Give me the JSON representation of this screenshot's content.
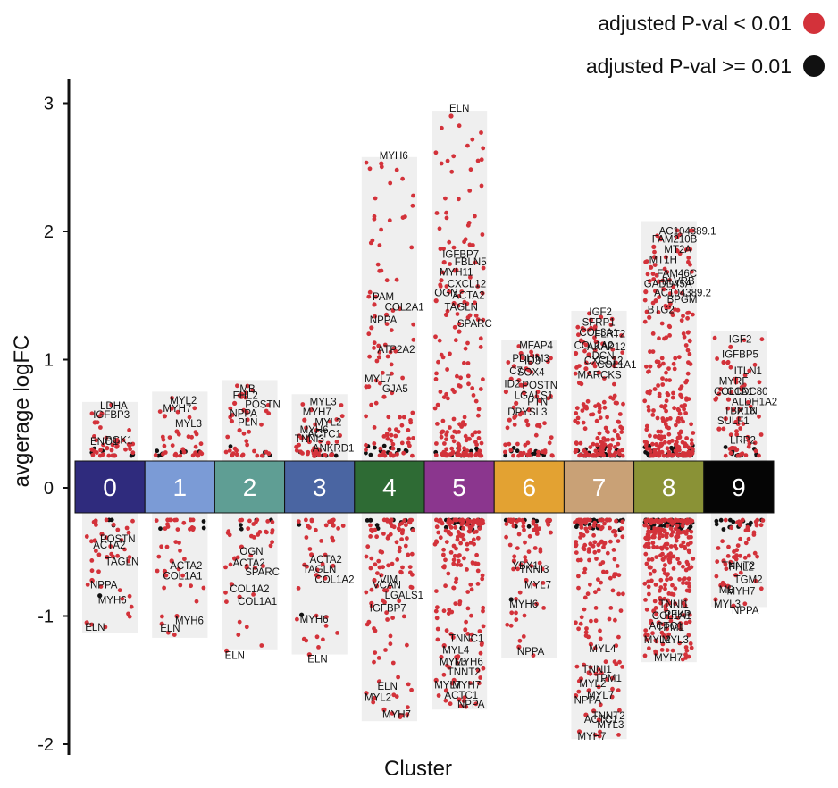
{
  "chart_data": {
    "type": "scatter",
    "xlabel": "Cluster",
    "ylabel": "avgerage logFC",
    "ylim": [
      -2,
      3
    ],
    "yticks": [
      {
        "v": -2,
        "t": "-2"
      },
      {
        "v": -1,
        "t": "-1"
      },
      {
        "v": 0,
        "t": "0"
      },
      {
        "v": 1,
        "t": "1"
      },
      {
        "v": 2,
        "t": "2"
      },
      {
        "v": 3,
        "t": "3"
      }
    ],
    "legend": [
      {
        "label": "adjusted P-val < 0.01",
        "color": "#d3323a"
      },
      {
        "label": "adjusted  P-val >= 0.01",
        "color": "#111111"
      }
    ],
    "legend_position": "top-right",
    "grid": false,
    "clusters": [
      {
        "label": "0",
        "color": "#2f2b7d",
        "text_color": "#ffffff",
        "max": 0.67,
        "min": -1.13
      },
      {
        "label": "1",
        "color": "#7b9bd6",
        "text_color": "#ffffff",
        "max": 0.75,
        "min": -1.17
      },
      {
        "label": "2",
        "color": "#5f9e94",
        "text_color": "#ffffff",
        "max": 0.84,
        "min": -1.26
      },
      {
        "label": "3",
        "color": "#4a65a2",
        "text_color": "#ffffff",
        "max": 0.73,
        "min": -1.3
      },
      {
        "label": "4",
        "color": "#2e6b34",
        "text_color": "#ffffff",
        "max": 2.58,
        "min": -1.82
      },
      {
        "label": "5",
        "color": "#8b368e",
        "text_color": "#ffffff",
        "max": 2.94,
        "min": -1.73
      },
      {
        "label": "6",
        "color": "#e3a232",
        "text_color": "#ffffff",
        "max": 1.15,
        "min": -1.33
      },
      {
        "label": "7",
        "color": "#c9a176",
        "text_color": "#ffffff",
        "max": 1.38,
        "min": -1.96
      },
      {
        "label": "8",
        "color": "#8a9236",
        "text_color": "#ffffff",
        "max": 2.08,
        "min": -1.36
      },
      {
        "label": "9",
        "color": "#050505",
        "text_color": "#ffffff",
        "max": 1.22,
        "min": -0.93
      }
    ],
    "labeled_genes": [
      {
        "cluster": 0,
        "gene": "LDHA",
        "y": 0.6,
        "sig": true
      },
      {
        "cluster": 0,
        "gene": "IGFBP3",
        "y": 0.53,
        "sig": true
      },
      {
        "cluster": 0,
        "gene": "PGK1",
        "y": 0.33,
        "sig": true
      },
      {
        "cluster": 0,
        "gene": "ENO1",
        "y": 0.32,
        "sig": true
      },
      {
        "cluster": 0,
        "gene": "POSTN",
        "y": -0.34,
        "sig": true
      },
      {
        "cluster": 0,
        "gene": "ACTA2",
        "y": -0.39,
        "sig": true
      },
      {
        "cluster": 0,
        "gene": "TAGLN",
        "y": -0.52,
        "sig": true
      },
      {
        "cluster": 0,
        "gene": "NPPA",
        "y": -0.7,
        "sig": true
      },
      {
        "cluster": 0,
        "gene": "MYH6",
        "y": -0.82,
        "sig": false
      },
      {
        "cluster": 0,
        "gene": "ELN",
        "y": -1.03,
        "sig": true
      },
      {
        "cluster": 1,
        "gene": "MYL2",
        "y": 0.64,
        "sig": true
      },
      {
        "cluster": 1,
        "gene": "MYH7",
        "y": 0.58,
        "sig": true
      },
      {
        "cluster": 1,
        "gene": "MYL3",
        "y": 0.46,
        "sig": true
      },
      {
        "cluster": 1,
        "gene": "ACTA2",
        "y": -0.55,
        "sig": true
      },
      {
        "cluster": 1,
        "gene": "COL1A1",
        "y": -0.63,
        "sig": true
      },
      {
        "cluster": 1,
        "gene": "MYH6",
        "y": -0.98,
        "sig": true
      },
      {
        "cluster": 1,
        "gene": "ELN",
        "y": -1.04,
        "sig": true
      },
      {
        "cluster": 2,
        "gene": "MB",
        "y": 0.73,
        "sig": true
      },
      {
        "cluster": 2,
        "gene": "FHL2",
        "y": 0.68,
        "sig": true
      },
      {
        "cluster": 2,
        "gene": "POSTN",
        "y": 0.61,
        "sig": true
      },
      {
        "cluster": 2,
        "gene": "NPPA",
        "y": 0.54,
        "sig": true
      },
      {
        "cluster": 2,
        "gene": "PLN",
        "y": 0.47,
        "sig": true
      },
      {
        "cluster": 2,
        "gene": "OGN",
        "y": -0.44,
        "sig": true
      },
      {
        "cluster": 2,
        "gene": "ACTA2",
        "y": -0.53,
        "sig": true
      },
      {
        "cluster": 2,
        "gene": "SPARC",
        "y": -0.6,
        "sig": true
      },
      {
        "cluster": 2,
        "gene": "COL1A2",
        "y": -0.73,
        "sig": true
      },
      {
        "cluster": 2,
        "gene": "COL1A1",
        "y": -0.83,
        "sig": true
      },
      {
        "cluster": 2,
        "gene": "ELN",
        "y": -1.25,
        "sig": true
      },
      {
        "cluster": 3,
        "gene": "MYL3",
        "y": 0.63,
        "sig": true
      },
      {
        "cluster": 3,
        "gene": "MYH7",
        "y": 0.55,
        "sig": true
      },
      {
        "cluster": 3,
        "gene": "MYL2",
        "y": 0.47,
        "sig": true
      },
      {
        "cluster": 3,
        "gene": "MYH6",
        "y": 0.41,
        "sig": true
      },
      {
        "cluster": 3,
        "gene": "ACTC1",
        "y": 0.38,
        "sig": true
      },
      {
        "cluster": 3,
        "gene": "TNNI3",
        "y": 0.34,
        "sig": true
      },
      {
        "cluster": 3,
        "gene": "ANKRD1",
        "y": 0.27,
        "sig": true
      },
      {
        "cluster": 3,
        "gene": "ACTA2",
        "y": -0.5,
        "sig": true
      },
      {
        "cluster": 3,
        "gene": "TAGLN",
        "y": -0.58,
        "sig": true
      },
      {
        "cluster": 3,
        "gene": "COL1A2",
        "y": -0.66,
        "sig": true
      },
      {
        "cluster": 3,
        "gene": "MYH6",
        "y": -0.97,
        "sig": false
      },
      {
        "cluster": 3,
        "gene": "ELN",
        "y": -1.28,
        "sig": true
      },
      {
        "cluster": 4,
        "gene": "MYH6",
        "y": 2.55,
        "sig": true
      },
      {
        "cluster": 4,
        "gene": "PAM",
        "y": 1.45,
        "sig": true
      },
      {
        "cluster": 4,
        "gene": "COL2A1",
        "y": 1.37,
        "sig": true
      },
      {
        "cluster": 4,
        "gene": "NPPA",
        "y": 1.27,
        "sig": true
      },
      {
        "cluster": 4,
        "gene": "ATP2A2",
        "y": 1.04,
        "sig": true
      },
      {
        "cluster": 4,
        "gene": "MYL7",
        "y": 0.81,
        "sig": true
      },
      {
        "cluster": 4,
        "gene": "GJA5",
        "y": 0.73,
        "sig": true
      },
      {
        "cluster": 4,
        "gene": "VIM",
        "y": -0.66,
        "sig": true
      },
      {
        "cluster": 4,
        "gene": "VCAN",
        "y": -0.7,
        "sig": true
      },
      {
        "cluster": 4,
        "gene": "LGALS1",
        "y": -0.78,
        "sig": true
      },
      {
        "cluster": 4,
        "gene": "IGFBP7",
        "y": -0.88,
        "sig": true
      },
      {
        "cluster": 4,
        "gene": "ELN",
        "y": -1.49,
        "sig": true
      },
      {
        "cluster": 4,
        "gene": "MYL2",
        "y": -1.58,
        "sig": true
      },
      {
        "cluster": 4,
        "gene": "MYH7",
        "y": -1.71,
        "sig": true
      },
      {
        "cluster": 5,
        "gene": "ELN",
        "y": 2.92,
        "sig": true
      },
      {
        "cluster": 5,
        "gene": "IGFBP7",
        "y": 1.78,
        "sig": true
      },
      {
        "cluster": 5,
        "gene": "FBLN5",
        "y": 1.72,
        "sig": true
      },
      {
        "cluster": 5,
        "gene": "MYH11",
        "y": 1.64,
        "sig": true
      },
      {
        "cluster": 5,
        "gene": "CXCL12",
        "y": 1.55,
        "sig": true
      },
      {
        "cluster": 5,
        "gene": "OGN",
        "y": 1.48,
        "sig": true
      },
      {
        "cluster": 5,
        "gene": "ACTA2",
        "y": 1.46,
        "sig": true
      },
      {
        "cluster": 5,
        "gene": "TAGLN",
        "y": 1.37,
        "sig": true
      },
      {
        "cluster": 5,
        "gene": "SPARC",
        "y": 1.24,
        "sig": true
      },
      {
        "cluster": 5,
        "gene": "TNNC1",
        "y": -1.12,
        "sig": true
      },
      {
        "cluster": 5,
        "gene": "MYL4",
        "y": -1.21,
        "sig": true
      },
      {
        "cluster": 5,
        "gene": "MYH6",
        "y": -1.3,
        "sig": true
      },
      {
        "cluster": 5,
        "gene": "MYL3",
        "y": -1.3,
        "sig": true
      },
      {
        "cluster": 5,
        "gene": "TNNT2",
        "y": -1.38,
        "sig": true
      },
      {
        "cluster": 5,
        "gene": "MYL7",
        "y": -1.48,
        "sig": true
      },
      {
        "cluster": 5,
        "gene": "MYH7",
        "y": -1.48,
        "sig": true
      },
      {
        "cluster": 5,
        "gene": "ACTC1",
        "y": -1.56,
        "sig": true
      },
      {
        "cluster": 5,
        "gene": "NPPA",
        "y": -1.63,
        "sig": true
      },
      {
        "cluster": 6,
        "gene": "MFAP4",
        "y": 1.07,
        "sig": true
      },
      {
        "cluster": 6,
        "gene": "PDLIM3",
        "y": 0.97,
        "sig": true
      },
      {
        "cluster": 6,
        "gene": "ID3",
        "y": 0.95,
        "sig": true
      },
      {
        "cluster": 6,
        "gene": "C7",
        "y": 0.87,
        "sig": true
      },
      {
        "cluster": 6,
        "gene": "SOX4",
        "y": 0.86,
        "sig": true
      },
      {
        "cluster": 6,
        "gene": "ID2",
        "y": 0.77,
        "sig": true
      },
      {
        "cluster": 6,
        "gene": "POSTN",
        "y": 0.76,
        "sig": true
      },
      {
        "cluster": 6,
        "gene": "LGALS1",
        "y": 0.68,
        "sig": true
      },
      {
        "cluster": 6,
        "gene": "PTN",
        "y": 0.63,
        "sig": true
      },
      {
        "cluster": 6,
        "gene": "DPYSL3",
        "y": 0.55,
        "sig": true
      },
      {
        "cluster": 6,
        "gene": "TNNI3",
        "y": -0.58,
        "sig": true
      },
      {
        "cluster": 6,
        "gene": "YBX1",
        "y": -0.55,
        "sig": true
      },
      {
        "cluster": 6,
        "gene": "MYL7",
        "y": -0.7,
        "sig": true
      },
      {
        "cluster": 6,
        "gene": "MYH6",
        "y": -0.85,
        "sig": false
      },
      {
        "cluster": 6,
        "gene": "NPPA",
        "y": -1.22,
        "sig": true
      },
      {
        "cluster": 7,
        "gene": "IGF2",
        "y": 1.33,
        "sig": true
      },
      {
        "cluster": 7,
        "gene": "SFRP1",
        "y": 1.25,
        "sig": true
      },
      {
        "cluster": 7,
        "gene": "FLRT2",
        "y": 1.16,
        "sig": true
      },
      {
        "cluster": 7,
        "gene": "COL3A1",
        "y": 1.17,
        "sig": true
      },
      {
        "cluster": 7,
        "gene": "AKAP12",
        "y": 1.06,
        "sig": true
      },
      {
        "cluster": 7,
        "gene": "COL1A2",
        "y": 1.07,
        "sig": true
      },
      {
        "cluster": 7,
        "gene": "DCN",
        "y": 0.99,
        "sig": true
      },
      {
        "cluster": 7,
        "gene": "CXCL12",
        "y": 0.95,
        "sig": true
      },
      {
        "cluster": 7,
        "gene": "COL1A1",
        "y": 0.92,
        "sig": true
      },
      {
        "cluster": 7,
        "gene": "MARCKS",
        "y": 0.84,
        "sig": true
      },
      {
        "cluster": 7,
        "gene": "MYL4",
        "y": -1.2,
        "sig": true
      },
      {
        "cluster": 7,
        "gene": "TNNI1",
        "y": -1.36,
        "sig": true
      },
      {
        "cluster": 7,
        "gene": "TPM1",
        "y": -1.43,
        "sig": true
      },
      {
        "cluster": 7,
        "gene": "MYL2",
        "y": -1.47,
        "sig": true
      },
      {
        "cluster": 7,
        "gene": "MYL7",
        "y": -1.56,
        "sig": true
      },
      {
        "cluster": 7,
        "gene": "NPPA",
        "y": -1.6,
        "sig": true
      },
      {
        "cluster": 7,
        "gene": "TNNT2",
        "y": -1.72,
        "sig": true
      },
      {
        "cluster": 7,
        "gene": "ACTC1",
        "y": -1.75,
        "sig": true
      },
      {
        "cluster": 7,
        "gene": "MYL3",
        "y": -1.79,
        "sig": true
      },
      {
        "cluster": 7,
        "gene": "MYH7",
        "y": -1.88,
        "sig": true
      },
      {
        "cluster": 8,
        "gene": "AC104389.1",
        "y": 1.96,
        "sig": true
      },
      {
        "cluster": 8,
        "gene": "FAM210B",
        "y": 1.9,
        "sig": true
      },
      {
        "cluster": 8,
        "gene": "MT2A",
        "y": 1.82,
        "sig": true
      },
      {
        "cluster": 8,
        "gene": "MT1H",
        "y": 1.74,
        "sig": true
      },
      {
        "cluster": 8,
        "gene": "FAM46C",
        "y": 1.63,
        "sig": true
      },
      {
        "cluster": 8,
        "gene": "GADD45A",
        "y": 1.55,
        "sig": true
      },
      {
        "cluster": 8,
        "gene": "BLVRB",
        "y": 1.57,
        "sig": true
      },
      {
        "cluster": 8,
        "gene": "AC104389.2",
        "y": 1.48,
        "sig": true
      },
      {
        "cluster": 8,
        "gene": "BPGM",
        "y": 1.43,
        "sig": true
      },
      {
        "cluster": 8,
        "gene": "BTG2",
        "y": 1.35,
        "sig": true
      },
      {
        "cluster": 8,
        "gene": "TNNI1",
        "y": -0.85,
        "sig": true
      },
      {
        "cluster": 8,
        "gene": "COL1A1",
        "y": -0.94,
        "sig": true
      },
      {
        "cluster": 8,
        "gene": "PFKP",
        "y": -0.93,
        "sig": true
      },
      {
        "cluster": 8,
        "gene": "ACTC1",
        "y": -1.02,
        "sig": true
      },
      {
        "cluster": 8,
        "gene": "TPM1",
        "y": -1.03,
        "sig": true
      },
      {
        "cluster": 8,
        "gene": "MYL2",
        "y": -1.13,
        "sig": true
      },
      {
        "cluster": 8,
        "gene": "MYL3",
        "y": -1.13,
        "sig": true
      },
      {
        "cluster": 8,
        "gene": "MYH7",
        "y": -1.27,
        "sig": true
      },
      {
        "cluster": 9,
        "gene": "IGF2",
        "y": 1.12,
        "sig": true
      },
      {
        "cluster": 9,
        "gene": "IGFBP5",
        "y": 1.0,
        "sig": true
      },
      {
        "cluster": 9,
        "gene": "ITLN1",
        "y": 0.87,
        "sig": true
      },
      {
        "cluster": 9,
        "gene": "MYRF",
        "y": 0.79,
        "sig": true
      },
      {
        "cluster": 9,
        "gene": "CCDC80",
        "y": 0.71,
        "sig": true
      },
      {
        "cluster": 9,
        "gene": "COL1A1",
        "y": 0.71,
        "sig": true
      },
      {
        "cluster": 9,
        "gene": "ALDH1A2",
        "y": 0.63,
        "sig": true
      },
      {
        "cluster": 9,
        "gene": "TBX18",
        "y": 0.56,
        "sig": true
      },
      {
        "cluster": 9,
        "gene": "PTN",
        "y": 0.56,
        "sig": true
      },
      {
        "cluster": 9,
        "gene": "SULF1",
        "y": 0.48,
        "sig": true
      },
      {
        "cluster": 9,
        "gene": "LRP2",
        "y": 0.33,
        "sig": true
      },
      {
        "cluster": 9,
        "gene": "FHL2",
        "y": -0.56,
        "sig": true
      },
      {
        "cluster": 9,
        "gene": "TNNT2",
        "y": -0.55,
        "sig": true
      },
      {
        "cluster": 9,
        "gene": "TGM2",
        "y": -0.66,
        "sig": true
      },
      {
        "cluster": 9,
        "gene": "MB",
        "y": -0.74,
        "sig": true
      },
      {
        "cluster": 9,
        "gene": "MYH7",
        "y": -0.75,
        "sig": true
      },
      {
        "cluster": 9,
        "gene": "MYL3",
        "y": -0.85,
        "sig": true
      },
      {
        "cluster": 9,
        "gene": "NPPA",
        "y": -0.9,
        "sig": true
      }
    ]
  }
}
